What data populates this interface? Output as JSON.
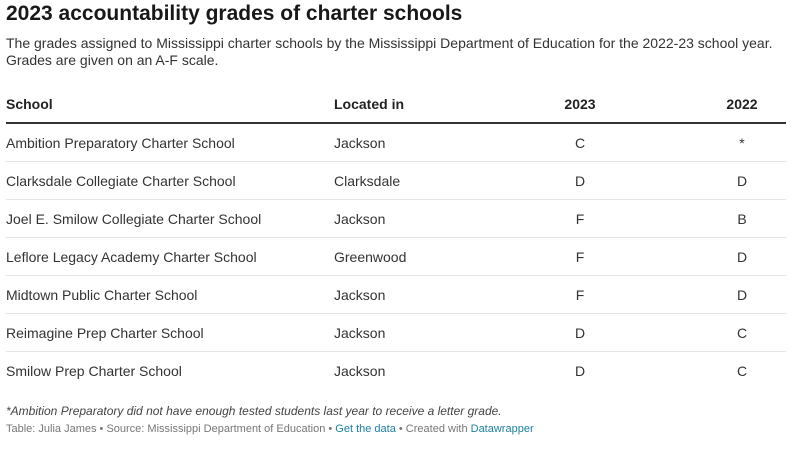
{
  "title": "2023 accountability grades of charter schools",
  "description": "The grades assigned to Mississippi charter schools by the Mississippi Department of Education for the 2022-23 school year. Grades are given on an A-F scale.",
  "table": {
    "headers": [
      "School",
      "Located in",
      "2023",
      "2022"
    ],
    "rows": [
      [
        "Ambition Preparatory Charter School",
        "Jackson",
        "C",
        "*"
      ],
      [
        "Clarksdale Collegiate Charter School",
        "Clarksdale",
        "D",
        "D"
      ],
      [
        "Joel E. Smilow Collegiate Charter School",
        "Jackson",
        "F",
        "B"
      ],
      [
        "Leflore Legacy Academy Charter School",
        "Greenwood",
        "F",
        "D"
      ],
      [
        "Midtown Public Charter School",
        "Jackson",
        "F",
        "D"
      ],
      [
        "Reimagine Prep Charter School",
        "Jackson",
        "D",
        "C"
      ],
      [
        "Smilow Prep Charter School",
        "Jackson",
        "D",
        "C"
      ]
    ]
  },
  "note": "*Ambition Preparatory did not have enough tested students last year to receive a letter grade.",
  "footer": {
    "credit": "Table: Julia James • Source: Mississippi Department of Education • ",
    "get_data": "Get the data",
    "created_with": " • Created with ",
    "datawrapper": "Datawrapper"
  },
  "colors": {
    "link": "#1d81a2",
    "header_rule": "#333333",
    "row_rule": "#e4e4e4"
  }
}
